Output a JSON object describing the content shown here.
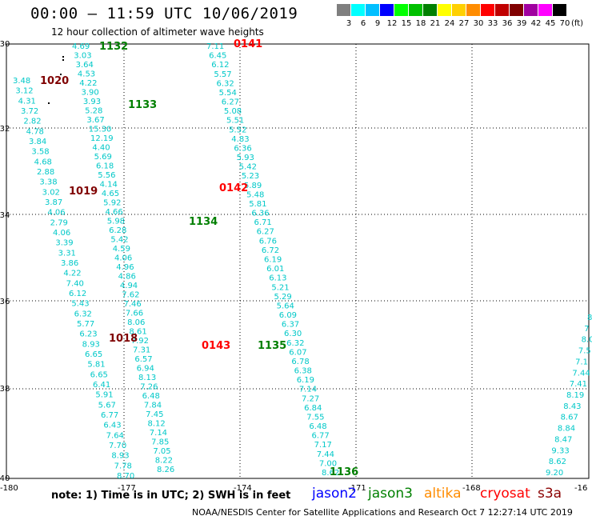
{
  "header": {
    "title": "00:00 — 11:59 UTC 10/06/2019",
    "subtitle": "12 hour collection of altimeter wave heights"
  },
  "legend": {
    "unit": "(ft)",
    "bins": [
      {
        "label": "3",
        "color": "#7f7f7f"
      },
      {
        "label": "6",
        "color": "#00ffff"
      },
      {
        "label": "9",
        "color": "#00bfff"
      },
      {
        "label": "12",
        "color": "#0000ff"
      },
      {
        "label": "15",
        "color": "#00ff00"
      },
      {
        "label": "18",
        "color": "#00c000"
      },
      {
        "label": "21",
        "color": "#008000"
      },
      {
        "label": "24",
        "color": "#ffff00"
      },
      {
        "label": "27",
        "color": "#ffd000"
      },
      {
        "label": "30",
        "color": "#ff8c00"
      },
      {
        "label": "33",
        "color": "#ff0000"
      },
      {
        "label": "36",
        "color": "#c00000"
      },
      {
        "label": "39",
        "color": "#800000"
      },
      {
        "label": "42",
        "color": "#a000a0"
      },
      {
        "label": "45",
        "color": "#ff00ff"
      },
      {
        "label": "70",
        "color": "#000000"
      }
    ]
  },
  "axes": {
    "lon_labels": [
      "-180",
      "-177",
      "-174",
      "-171",
      "-168",
      "-16"
    ],
    "lat_labels": [
      "-30",
      "-32",
      "-34",
      "-36",
      "-38",
      "-40"
    ]
  },
  "tracks": [
    {
      "name": "jason3",
      "pass": "1132",
      "color": "#007f00",
      "values": [
        "4.69",
        "3.03",
        "3.64",
        "4.53",
        "4.22",
        "3.90",
        "3.93",
        "5.28",
        "3.67",
        "15.30",
        "12.19",
        "4.40",
        "5.69",
        "6.18",
        "5.56",
        "4.14",
        "4.65",
        "5.92",
        "4.66",
        "5.98",
        "6.28",
        "5.42",
        "4.59",
        "4.06",
        "4.96",
        "4.86",
        "4.94",
        "7.62",
        "7.46",
        "7.66",
        "8.06",
        "8.61",
        "7.92",
        "7.31",
        "6.57",
        "6.94",
        "8.13",
        "7.26",
        "6.48",
        "7.84",
        "7.45",
        "8.12",
        "7.14",
        "7.85",
        "7.05",
        "8.22",
        "8.26"
      ]
    },
    {
      "name": "jason3",
      "pass": "1133",
      "color": "#007f00",
      "values": []
    },
    {
      "name": "jason3",
      "pass": "1134",
      "color": "#007f00",
      "values": []
    },
    {
      "name": "jason3",
      "pass": "1135",
      "color": "#007f00",
      "values": []
    },
    {
      "name": "jason3",
      "pass": "1136",
      "color": "#007f00",
      "values": []
    },
    {
      "name": "cryosat",
      "pass": "0141",
      "color": "#ff0000",
      "values": [
        "7.11",
        "6.45",
        "6.12",
        "5.57",
        "6.32",
        "5.54",
        "6.27",
        "5.08",
        "5.51",
        "5.52",
        "4.83",
        "6.36",
        "5.93",
        "5.42",
        "5.23",
        "5.89",
        "5.48",
        "5.81",
        "6.36",
        "6.71",
        "6.27",
        "6.76",
        "6.72",
        "6.19",
        "6.01",
        "6.13",
        "5.21",
        "5.29",
        "5.64",
        "6.09",
        "6.37",
        "6.30",
        "6.32",
        "6.07",
        "6.78",
        "6.38",
        "6.19",
        "7.14",
        "7.27",
        "6.84",
        "7.55",
        "6.48",
        "6.77",
        "7.17",
        "7.44",
        "7.00",
        "8.62"
      ]
    },
    {
      "name": "cryosat",
      "pass": "0142",
      "color": "#ff0000",
      "values": []
    },
    {
      "name": "cryosat",
      "pass": "0143",
      "color": "#ff0000",
      "values": []
    },
    {
      "name": "altika",
      "pass": "1020",
      "color": "#7f0000",
      "values": [
        "3.48",
        "3.12",
        "4.31",
        "3.72",
        "2.82",
        "4.78",
        "3.84",
        "3.58",
        "4.68",
        "2.88",
        "3.38",
        "3.02",
        "3.87",
        "4.06",
        "2.79",
        "4.06",
        "3.39",
        "3.31",
        "3.86",
        "4.22",
        "7.40",
        "6.12",
        "5.43",
        "6.32",
        "5.77",
        "6.23",
        "8.93",
        "6.65",
        "5.81",
        "6.65",
        "6.41",
        "5.91",
        "5.67",
        "6.77",
        "6.43",
        "7.64",
        "7.70",
        "8.93",
        "7.78",
        "8.70"
      ]
    },
    {
      "name": "altika",
      "pass": "1019",
      "color": "#7f0000",
      "values": []
    },
    {
      "name": "altika",
      "pass": "1018",
      "color": "#7f0000",
      "values": []
    },
    {
      "name": "jason2",
      "pass": "",
      "color": "#00c8c8",
      "values": [
        "8",
        "7",
        "8.0",
        "7.5",
        "7.1",
        "7.44",
        "7.41",
        "8.19",
        "8.43",
        "8.67",
        "8.84",
        "8.47",
        "9.33",
        "8.62",
        "9.20"
      ]
    }
  ],
  "satellites": [
    {
      "name": "jason2",
      "color": "#0000ff"
    },
    {
      "name": "jason3",
      "color": "#008000"
    },
    {
      "name": "altika",
      "color": "#ff8c00"
    },
    {
      "name": "cryosat",
      "color": "#ff0000"
    },
    {
      "name": "s3a",
      "color": "#8b0000"
    }
  ],
  "footer": {
    "note": "note:  1) Time is in UTC;  2) SWH is in feet",
    "credit": "NOAA/NESDIS Center for Satellite Applications and Research     Oct  7 12:27:14 UTC 2019"
  }
}
